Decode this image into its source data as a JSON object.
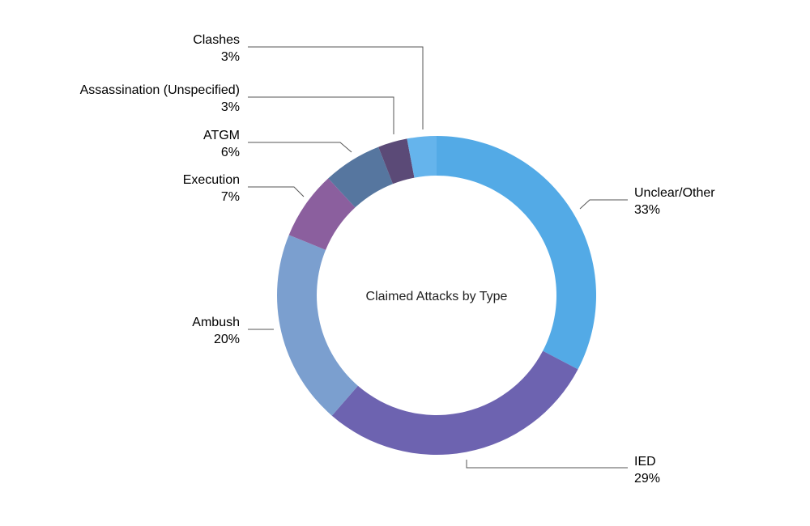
{
  "chart_data": {
    "type": "pie",
    "title": "Claimed Attacks by Type",
    "slices": [
      {
        "label": "Unclear/Other",
        "value": 33,
        "value_label": "33%",
        "color": "#53aae6"
      },
      {
        "label": "IED",
        "value": 29,
        "value_label": "29%",
        "color": "#6d63b0"
      },
      {
        "label": "Ambush",
        "value": 20,
        "value_label": "20%",
        "color": "#7b9fcf"
      },
      {
        "label": "Execution",
        "value": 7,
        "value_label": "7%",
        "color": "#8b5f9e"
      },
      {
        "label": "ATGM",
        "value": 6,
        "value_label": "6%",
        "color": "#56769f"
      },
      {
        "label": "Assassination (Unspecified)",
        "value": 3,
        "value_label": "3%",
        "color": "#5b4a77"
      },
      {
        "label": "Clashes",
        "value": 3,
        "value_label": "3%",
        "color": "#65b4ec"
      }
    ]
  }
}
